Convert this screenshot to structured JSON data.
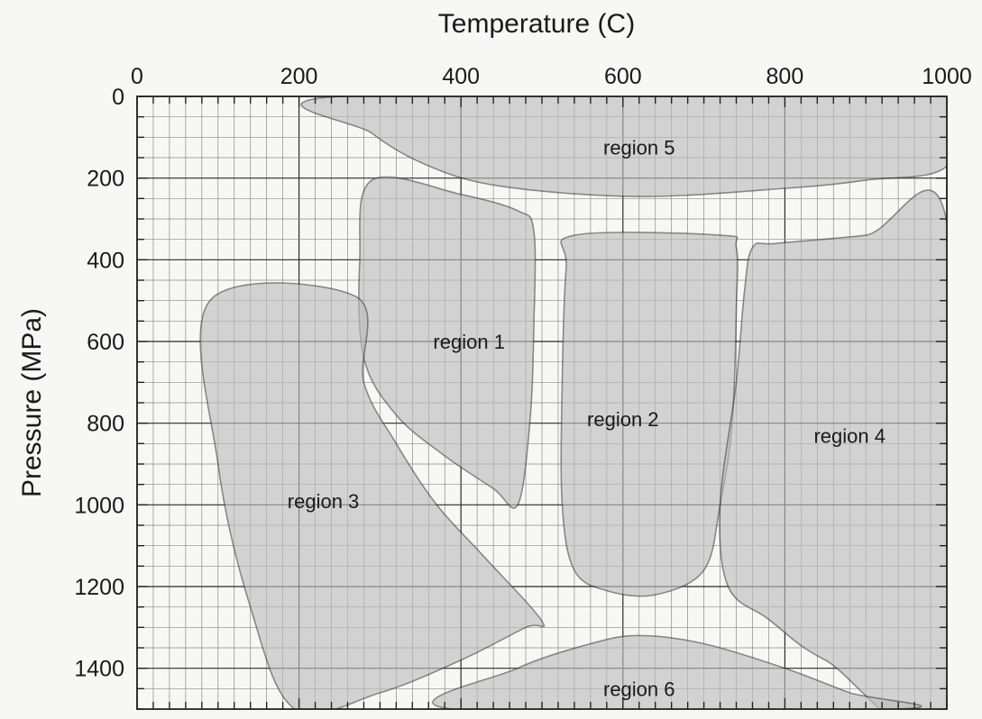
{
  "chart_data": {
    "type": "area",
    "xlabel": "Temperature (C)",
    "ylabel": "Pressure (MPa)",
    "xlim": [
      0,
      1000
    ],
    "ylim": [
      0,
      1500
    ],
    "y_inverted": true,
    "x_axis_position": "top",
    "xticks": [
      0,
      200,
      400,
      600,
      800,
      1000
    ],
    "yticks": [
      0,
      200,
      400,
      600,
      800,
      1000,
      1200,
      1400
    ],
    "grid": true,
    "fill_color": "#bdbdbd",
    "regions": [
      {
        "name": "region 1",
        "label_at": [
          410,
          600
        ],
        "points": [
          [
            290,
            205
          ],
          [
            400,
            240
          ],
          [
            470,
            280
          ],
          [
            490,
            330
          ],
          [
            490,
            560
          ],
          [
            485,
            800
          ],
          [
            470,
            1000
          ],
          [
            440,
            960
          ],
          [
            380,
            880
          ],
          [
            320,
            780
          ],
          [
            280,
            640
          ],
          [
            275,
            400
          ]
        ]
      },
      {
        "name": "region 2",
        "label_at": [
          600,
          790
        ],
        "points": [
          [
            540,
            340
          ],
          [
            720,
            340
          ],
          [
            740,
            370
          ],
          [
            740,
            520
          ],
          [
            735,
            800
          ],
          [
            720,
            1000
          ],
          [
            700,
            1160
          ],
          [
            640,
            1220
          ],
          [
            580,
            1210
          ],
          [
            540,
            1160
          ],
          [
            525,
            1000
          ],
          [
            525,
            700
          ],
          [
            530,
            420
          ]
        ]
      },
      {
        "name": "region 3",
        "label_at": [
          230,
          990
        ],
        "points": [
          [
            90,
            500
          ],
          [
            270,
            490
          ],
          [
            280,
            700
          ],
          [
            320,
            850
          ],
          [
            370,
            1000
          ],
          [
            430,
            1130
          ],
          [
            500,
            1285
          ],
          [
            480,
            1300
          ],
          [
            400,
            1380
          ],
          [
            300,
            1460
          ],
          [
            195,
            1500
          ],
          [
            140,
            1250
          ],
          [
            100,
            900
          ]
        ]
      },
      {
        "name": "region 4",
        "label_at": [
          880,
          830
        ],
        "points": [
          [
            760,
            370
          ],
          [
            790,
            360
          ],
          [
            900,
            340
          ],
          [
            1000,
            310
          ],
          [
            1000,
            1500
          ],
          [
            850,
            1380
          ],
          [
            780,
            1280
          ],
          [
            730,
            1200
          ],
          [
            720,
            1000
          ],
          [
            740,
            700
          ],
          [
            750,
            480
          ]
        ]
      },
      {
        "name": "region 5",
        "label_at": [
          620,
          125
        ],
        "points": [
          [
            250,
            0
          ],
          [
            1000,
            0
          ],
          [
            1000,
            170
          ],
          [
            900,
            205
          ],
          [
            800,
            225
          ],
          [
            620,
            245
          ],
          [
            450,
            220
          ],
          [
            360,
            170
          ],
          [
            290,
            90
          ]
        ]
      },
      {
        "name": "region 6",
        "label_at": [
          620,
          1450
        ],
        "points": [
          [
            390,
            1500
          ],
          [
            470,
            1400
          ],
          [
            560,
            1340
          ],
          [
            620,
            1320
          ],
          [
            700,
            1340
          ],
          [
            800,
            1400
          ],
          [
            880,
            1460
          ],
          [
            940,
            1500
          ]
        ]
      }
    ]
  }
}
